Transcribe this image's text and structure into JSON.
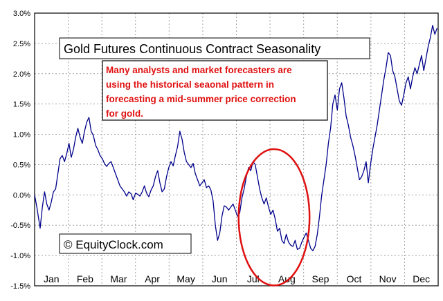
{
  "chart_data": {
    "type": "line",
    "title": "Gold Futures Continuous Contract Seasonality",
    "xlabel": "",
    "ylabel": "",
    "ylim": [
      -0.015,
      0.03
    ],
    "y_ticks": [
      "3.0%",
      "2.5%",
      "2.0%",
      "1.5%",
      "1.0%",
      "0.5%",
      "0.0%",
      "-0.5%",
      "-1.0%",
      "-1.5%"
    ],
    "y_tick_values": [
      0.03,
      0.025,
      0.02,
      0.015,
      0.01,
      0.005,
      0.0,
      -0.005,
      -0.01,
      -0.015
    ],
    "x_ticks": [
      "Jan",
      "Feb",
      "Mar",
      "Apr",
      "May",
      "Jun",
      "Jul",
      "Aug",
      "Sep",
      "Oct",
      "Nov",
      "Dec"
    ],
    "grid": true,
    "annotation": "Many analysts and market forecasters are using the historical seaonal pattern in forecasting a mid-summer price correction for gold.",
    "annotation_lines": [
      "Many analysts and market forecasters are",
      "using the historical seaonal pattern in",
      "forecasting a mid-summer price correction",
      "for gold."
    ],
    "watermark": "© EquityClock.com",
    "colors": {
      "line": "#00008b",
      "grid": "#a0a0a0",
      "annotation": "#e01010",
      "circle": "#e01010"
    },
    "highlight": {
      "shape": "ellipse",
      "center_day": 217,
      "center_value": -0.0037,
      "span_days": 64,
      "span_value": 0.0225
    },
    "series": [
      {
        "values": [
          [
            1,
            0.0
          ],
          [
            3,
            -0.002
          ],
          [
            6,
            -0.0055
          ],
          [
            8,
            -0.002
          ],
          [
            10,
            0.0005
          ],
          [
            12,
            -0.0015
          ],
          [
            14,
            -0.0025
          ],
          [
            16,
            -0.0012
          ],
          [
            18,
            0.0005
          ],
          [
            20,
            0.001
          ],
          [
            22,
            0.0035
          ],
          [
            24,
            0.006
          ],
          [
            26,
            0.0065
          ],
          [
            28,
            0.0055
          ],
          [
            30,
            0.0068
          ],
          [
            32,
            0.0085
          ],
          [
            34,
            0.0062
          ],
          [
            36,
            0.0075
          ],
          [
            38,
            0.0095
          ],
          [
            40,
            0.011
          ],
          [
            42,
            0.0095
          ],
          [
            44,
            0.0085
          ],
          [
            46,
            0.0105
          ],
          [
            48,
            0.012
          ],
          [
            50,
            0.0128
          ],
          [
            52,
            0.0105
          ],
          [
            54,
            0.0098
          ],
          [
            56,
            0.0082
          ],
          [
            58,
            0.0075
          ],
          [
            60,
            0.0065
          ],
          [
            62,
            0.006
          ],
          [
            64,
            0.0052
          ],
          [
            66,
            0.0047
          ],
          [
            68,
            0.0052
          ],
          [
            70,
            0.0055
          ],
          [
            72,
            0.0045
          ],
          [
            74,
            0.0035
          ],
          [
            76,
            0.0025
          ],
          [
            78,
            0.0015
          ],
          [
            80,
            0.001
          ],
          [
            82,
            0.0005
          ],
          [
            84,
            -0.0002
          ],
          [
            86,
            0.0005
          ],
          [
            88,
            0.0002
          ],
          [
            90,
            -0.0008
          ],
          [
            92,
            0.0003
          ],
          [
            94,
            0.0001
          ],
          [
            96,
            -0.0002
          ],
          [
            98,
            0.0005
          ],
          [
            100,
            0.0015
          ],
          [
            102,
            0.0003
          ],
          [
            104,
            -0.0003
          ],
          [
            106,
            0.0008
          ],
          [
            108,
            0.0015
          ],
          [
            110,
            0.003
          ],
          [
            112,
            0.004
          ],
          [
            114,
            0.002
          ],
          [
            116,
            0.0005
          ],
          [
            118,
            0.001
          ],
          [
            120,
            0.003
          ],
          [
            122,
            0.0045
          ],
          [
            124,
            0.0055
          ],
          [
            126,
            0.0048
          ],
          [
            128,
            0.0065
          ],
          [
            130,
            0.008
          ],
          [
            132,
            0.0105
          ],
          [
            134,
            0.0092
          ],
          [
            136,
            0.007
          ],
          [
            138,
            0.0055
          ],
          [
            140,
            0.005
          ],
          [
            142,
            0.0045
          ],
          [
            144,
            0.0052
          ],
          [
            146,
            0.0035
          ],
          [
            148,
            0.0025
          ],
          [
            150,
            0.0015
          ],
          [
            152,
            0.002
          ],
          [
            154,
            0.0025
          ],
          [
            156,
            0.0012
          ],
          [
            158,
            0.0015
          ],
          [
            160,
            0.0008
          ],
          [
            162,
            -0.001
          ],
          [
            164,
            -0.005
          ],
          [
            166,
            -0.0075
          ],
          [
            168,
            -0.0063
          ],
          [
            170,
            -0.0035
          ],
          [
            172,
            -0.0018
          ],
          [
            174,
            -0.002
          ],
          [
            176,
            -0.0025
          ],
          [
            178,
            -0.002
          ],
          [
            180,
            -0.0015
          ],
          [
            182,
            -0.0025
          ],
          [
            184,
            -0.0035
          ],
          [
            186,
            -0.003
          ],
          [
            188,
            -0.0005
          ],
          [
            190,
            0.001
          ],
          [
            192,
            0.003
          ],
          [
            194,
            0.0045
          ],
          [
            196,
            0.004
          ],
          [
            198,
            0.0055
          ],
          [
            200,
            0.005
          ],
          [
            202,
            0.003
          ],
          [
            204,
            0.001
          ],
          [
            206,
            -0.0005
          ],
          [
            208,
            -0.0015
          ],
          [
            210,
            -0.0005
          ],
          [
            212,
            -0.002
          ],
          [
            214,
            -0.0032
          ],
          [
            216,
            -0.0025
          ],
          [
            218,
            -0.004
          ],
          [
            220,
            -0.006
          ],
          [
            222,
            -0.0055
          ],
          [
            224,
            -0.0075
          ],
          [
            226,
            -0.008
          ],
          [
            228,
            -0.0065
          ],
          [
            230,
            -0.0078
          ],
          [
            232,
            -0.0083
          ],
          [
            234,
            -0.0085
          ],
          [
            236,
            -0.0075
          ],
          [
            238,
            -0.009
          ],
          [
            240,
            -0.0088
          ],
          [
            242,
            -0.0078
          ],
          [
            244,
            -0.007
          ],
          [
            246,
            -0.0063
          ],
          [
            248,
            -0.0075
          ],
          [
            250,
            -0.0088
          ],
          [
            252,
            -0.0092
          ],
          [
            254,
            -0.0085
          ],
          [
            256,
            -0.0065
          ],
          [
            258,
            -0.0035
          ],
          [
            260,
            0.0
          ],
          [
            262,
            0.0025
          ],
          [
            264,
            0.005
          ],
          [
            266,
            0.0085
          ],
          [
            268,
            0.011
          ],
          [
            270,
            0.015
          ],
          [
            272,
            0.0165
          ],
          [
            274,
            0.014
          ],
          [
            276,
            0.0175
          ],
          [
            278,
            0.0185
          ],
          [
            280,
            0.016
          ],
          [
            282,
            0.013
          ],
          [
            284,
            0.0115
          ],
          [
            286,
            0.0095
          ],
          [
            288,
            0.0082
          ],
          [
            290,
            0.0065
          ],
          [
            292,
            0.0045
          ],
          [
            294,
            0.0025
          ],
          [
            296,
            0.003
          ],
          [
            298,
            0.004
          ],
          [
            300,
            0.0055
          ],
          [
            302,
            0.002
          ],
          [
            304,
            0.005
          ],
          [
            306,
            0.0075
          ],
          [
            308,
            0.0095
          ],
          [
            310,
            0.0115
          ],
          [
            312,
            0.014
          ],
          [
            314,
            0.0165
          ],
          [
            316,
            0.019
          ],
          [
            318,
            0.021
          ],
          [
            320,
            0.0235
          ],
          [
            322,
            0.023
          ],
          [
            324,
            0.0205
          ],
          [
            326,
            0.0195
          ],
          [
            328,
            0.0175
          ],
          [
            330,
            0.0155
          ],
          [
            332,
            0.0148
          ],
          [
            334,
            0.0165
          ],
          [
            336,
            0.0185
          ],
          [
            338,
            0.0195
          ],
          [
            340,
            0.0175
          ],
          [
            342,
            0.0195
          ],
          [
            344,
            0.021
          ],
          [
            346,
            0.02
          ],
          [
            348,
            0.0215
          ],
          [
            350,
            0.023
          ],
          [
            352,
            0.0205
          ],
          [
            354,
            0.0225
          ],
          [
            356,
            0.0245
          ],
          [
            358,
            0.026
          ],
          [
            360,
            0.028
          ],
          [
            362,
            0.0265
          ],
          [
            364,
            0.0275
          ]
        ]
      }
    ]
  }
}
